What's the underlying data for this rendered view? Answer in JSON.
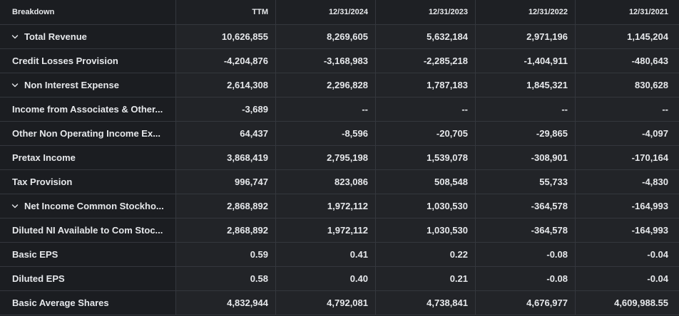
{
  "header": {
    "breakdown": "Breakdown",
    "columns": [
      "TTM",
      "12/31/2024",
      "12/31/2023",
      "12/31/2022",
      "12/31/2021"
    ]
  },
  "icons": {
    "expand": "chevron-down-icon"
  },
  "rows": [
    {
      "label": "Total Revenue",
      "expandable": true,
      "values": [
        "10,626,855",
        "8,269,605",
        "5,632,184",
        "2,971,196",
        "1,145,204"
      ]
    },
    {
      "label": "Credit Losses Provision",
      "expandable": false,
      "values": [
        "-4,204,876",
        "-3,168,983",
        "-2,285,218",
        "-1,404,911",
        "-480,643"
      ]
    },
    {
      "label": "Non Interest Expense",
      "expandable": true,
      "values": [
        "2,614,308",
        "2,296,828",
        "1,787,183",
        "1,845,321",
        "830,628"
      ]
    },
    {
      "label": "Income from Associates & Other...",
      "expandable": false,
      "values": [
        "-3,689",
        "--",
        "--",
        "--",
        "--"
      ]
    },
    {
      "label": "Other Non Operating Income Ex...",
      "expandable": false,
      "values": [
        "64,437",
        "-8,596",
        "-20,705",
        "-29,865",
        "-4,097"
      ]
    },
    {
      "label": "Pretax Income",
      "expandable": false,
      "values": [
        "3,868,419",
        "2,795,198",
        "1,539,078",
        "-308,901",
        "-170,164"
      ]
    },
    {
      "label": "Tax Provision",
      "expandable": false,
      "values": [
        "996,747",
        "823,086",
        "508,548",
        "55,733",
        "-4,830"
      ]
    },
    {
      "label": "Net Income Common Stockho...",
      "expandable": true,
      "values": [
        "2,868,892",
        "1,972,112",
        "1,030,530",
        "-364,578",
        "-164,993"
      ]
    },
    {
      "label": "Diluted NI Available to Com Stoc...",
      "expandable": false,
      "values": [
        "2,868,892",
        "1,972,112",
        "1,030,530",
        "-364,578",
        "-164,993"
      ]
    },
    {
      "label": "Basic EPS",
      "expandable": false,
      "values": [
        "0.59",
        "0.41",
        "0.22",
        "-0.08",
        "-0.04"
      ]
    },
    {
      "label": "Diluted EPS",
      "expandable": false,
      "values": [
        "0.58",
        "0.40",
        "0.21",
        "-0.08",
        "-0.04"
      ]
    },
    {
      "label": "Basic Average Shares",
      "expandable": false,
      "values": [
        "4,832,944",
        "4,792,081",
        "4,738,841",
        "4,676,977",
        "4,609,988.55"
      ]
    }
  ]
}
